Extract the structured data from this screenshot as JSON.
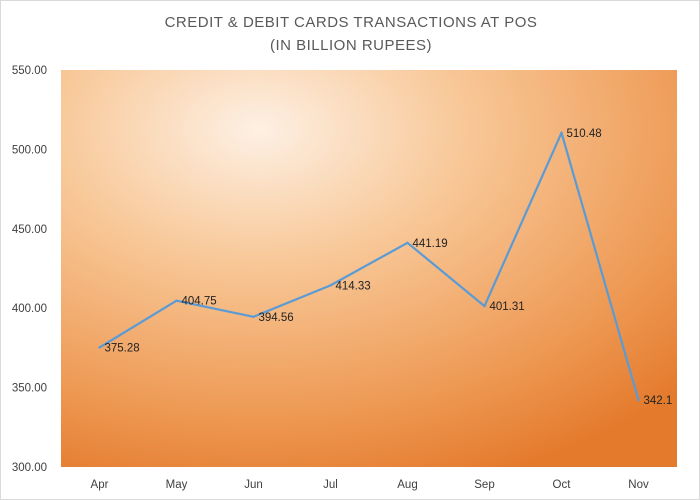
{
  "title_line_1": "CREDIT & DEBIT CARDS TRANSACTIONS AT POS",
  "title_line_2": "(IN BILLION RUPEES)",
  "colors": {
    "line": "#5b9bd5",
    "plot_center": "#fde7d3",
    "plot_edge": "#e87b2e",
    "axis_text": "#404040"
  },
  "chart_data": {
    "type": "line",
    "title": "CREDIT & DEBIT CARDS TRANSACTIONS AT POS (IN BILLION RUPEES)",
    "xlabel": "",
    "ylabel": "",
    "categories": [
      "Apr",
      "May",
      "Jun",
      "Jul",
      "Aug",
      "Sep",
      "Oct",
      "Nov"
    ],
    "series": [
      {
        "values": [
          375.28,
          404.75,
          394.56,
          414.33,
          441.19,
          401.31,
          510.48,
          342.1
        ],
        "labels": [
          "375.28",
          "404.75",
          "394.56",
          "414.33",
          "441.19",
          "401.31",
          "510.48",
          "342.1"
        ]
      }
    ],
    "ylim": [
      300,
      550
    ],
    "yticks": [
      "300.00",
      "350.00",
      "400.00",
      "450.00",
      "500.00",
      "550.00"
    ],
    "grid": false,
    "legend": "none"
  }
}
